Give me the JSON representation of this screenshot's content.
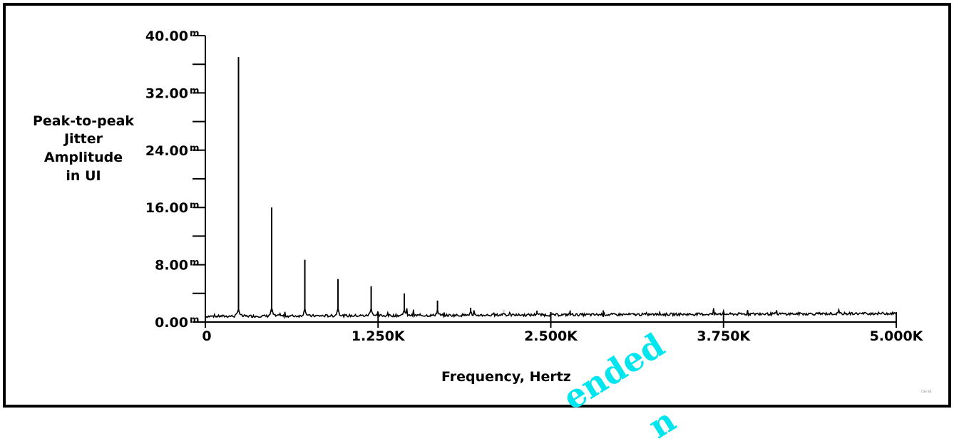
{
  "chart_data": {
    "type": "line",
    "title": "",
    "ylabel": [
      "Peak-to-peak",
      "Jitter",
      "Amplitude",
      "in UI"
    ],
    "xlabel": "Frequency, Hertz",
    "xlim": [
      0,
      5000
    ],
    "ylim": [
      0,
      40
    ],
    "y_unit_suffix": "m",
    "y_ticks": [
      "0.00",
      "8.00",
      "16.00",
      "24.00",
      "32.00",
      "40.00"
    ],
    "x_ticks": [
      "0",
      "1.250K",
      "2.500K",
      "3.750K",
      "5.000K"
    ],
    "grid": false,
    "series": [
      {
        "peaks_x": [
          240,
          480,
          720,
          960,
          1200,
          1440,
          1680,
          1920,
          2160,
          2400,
          2640,
          2880
        ],
        "peaks_y": [
          37.0,
          16.0,
          8.7,
          6.0,
          5.0,
          4.0,
          3.0,
          2.0,
          1.5,
          1.2,
          0.9,
          0.7
        ],
        "baseline_start": 0.8,
        "baseline_end": 1.2
      }
    ]
  },
  "watermark": [
    "ended",
    "n"
  ],
  "footnote": "CSE 88"
}
